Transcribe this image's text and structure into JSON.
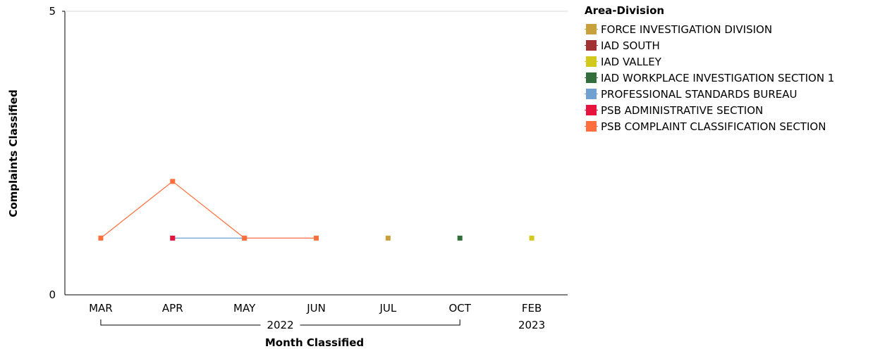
{
  "chart_data": {
    "type": "line",
    "title": "",
    "xlabel": "Month Classified",
    "ylabel": "Complaints Classified",
    "ylim": [
      0,
      5
    ],
    "y_ticks": [
      "0",
      "5"
    ],
    "categories": [
      "MAR",
      "APR",
      "MAY",
      "JUN",
      "JUL",
      "OCT",
      "FEB"
    ],
    "year_groups": [
      {
        "label": "2022",
        "from": 0,
        "to": 5
      },
      {
        "label": "2023",
        "from": 6,
        "to": 6
      }
    ],
    "grid": false,
    "legend_position": "right",
    "legend_title": "Area-Division",
    "series": [
      {
        "name": "FORCE INVESTIGATION DIVISION",
        "color": "#C8A03C",
        "values": [
          null,
          null,
          null,
          null,
          1,
          null,
          null
        ]
      },
      {
        "name": "IAD SOUTH",
        "color": "#A03232",
        "values": [
          null,
          null,
          null,
          null,
          null,
          null,
          null
        ]
      },
      {
        "name": "IAD VALLEY",
        "color": "#D2C81E",
        "values": [
          null,
          null,
          null,
          null,
          null,
          null,
          1
        ]
      },
      {
        "name": "IAD WORKPLACE INVESTIGATION SECTION 1",
        "color": "#326E3C",
        "values": [
          null,
          null,
          null,
          null,
          null,
          1,
          null
        ]
      },
      {
        "name": "PROFESSIONAL STANDARDS BUREAU",
        "color": "#6EA0D2",
        "values": [
          null,
          1,
          1,
          null,
          null,
          null,
          null
        ]
      },
      {
        "name": "PSB ADMINISTRATIVE SECTION",
        "color": "#E6143C",
        "values": [
          null,
          1,
          null,
          null,
          null,
          null,
          null
        ]
      },
      {
        "name": "PSB COMPLAINT CLASSIFICATION SECTION",
        "color": "#FF6E3C",
        "values": [
          1,
          2,
          1,
          1,
          null,
          null,
          null
        ]
      }
    ]
  }
}
